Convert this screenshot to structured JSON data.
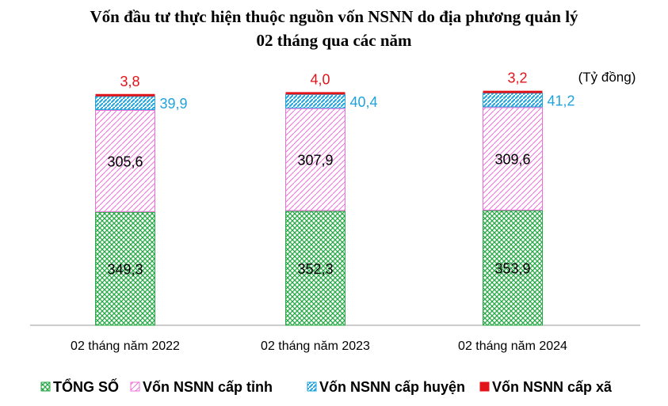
{
  "title_line1": "Vốn đầu tư thực hiện thuộc nguồn vốn NSNN do địa phương quản lý",
  "title_line2": "02 tháng qua các năm",
  "unit_note": "(Tỷ đồng)",
  "colors": {
    "tong_so": "#27a745",
    "cap_tinh": "#ec6fd8",
    "cap_huyen": "#1fa3dc",
    "cap_xa": "#e3131a",
    "value_tong_so": "#000000",
    "value_cap_tinh": "#000000",
    "value_cap_huyen": "#1fa3dc",
    "value_cap_xa": "#e3131a"
  },
  "chart_data": {
    "type": "bar",
    "stacked": true,
    "categories": [
      "02 tháng năm 2022",
      "02 tháng năm 2023",
      "02 tháng năm 2024"
    ],
    "series": [
      {
        "name": "TỔNG SỐ",
        "values": [
          349.3,
          352.3,
          353.9
        ],
        "labels": [
          "349,3",
          "352,3",
          "353,9"
        ]
      },
      {
        "name": "Vốn NSNN cấp tỉnh",
        "values": [
          305.6,
          307.9,
          309.6
        ],
        "labels": [
          "305,6",
          "307,9",
          "309,6"
        ]
      },
      {
        "name": "Vốn NSNN cấp huyện",
        "values": [
          39.9,
          40.4,
          41.2
        ],
        "labels": [
          "39,9",
          "40,4",
          "41,2"
        ]
      },
      {
        "name": "Vốn NSNN cấp xã",
        "values": [
          3.8,
          4.0,
          3.2
        ],
        "labels": [
          "3,8",
          "4,0",
          "3,2"
        ]
      }
    ],
    "legend_position": "bottom",
    "grid": false
  }
}
